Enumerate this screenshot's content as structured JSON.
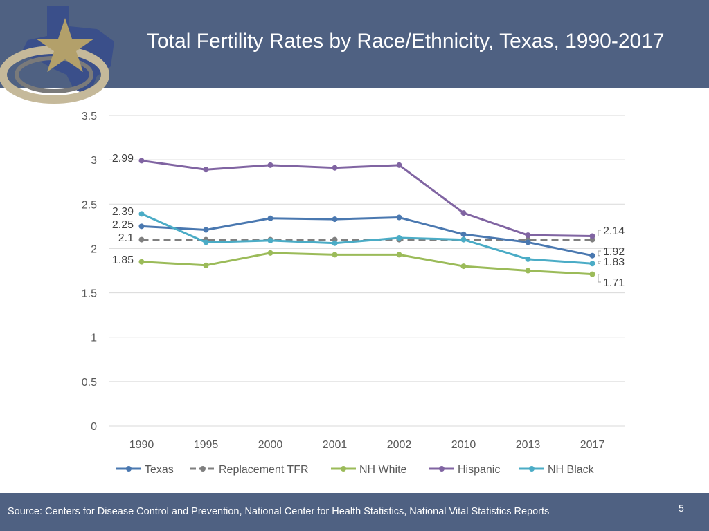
{
  "title": "Total Fertility Rates by Race/Ethnicity, Texas, 1990-2017",
  "logo": {
    "name": "Texas star logo"
  },
  "footer": {
    "source": "Source: Centers for Disease Control and Prevention, National Center for Health Statistics, National Vital Statistics Reports",
    "page_number": "5"
  },
  "colors": {
    "header_bg": "#4f6182",
    "Texas": "#4a78b0",
    "Replacement TFR": "#7f7f7f",
    "NH White": "#9bbb59",
    "Hispanic": "#8064a2",
    "NH Black": "#4bacc6"
  },
  "chart_data": {
    "type": "line",
    "title": "Total Fertility Rates by Race/Ethnicity, Texas, 1990-2017",
    "xlabel": "",
    "ylabel": "",
    "ylim": [
      0,
      3.5
    ],
    "yticks": [
      "0",
      "0.5",
      "1",
      "1.5",
      "2",
      "2.5",
      "3",
      "3.5"
    ],
    "grid": true,
    "legend_position": "bottom",
    "categories": [
      "1990",
      "1995",
      "2000",
      "2001",
      "2002",
      "2010",
      "2013",
      "2017"
    ],
    "series": [
      {
        "name": "Texas",
        "values": [
          2.25,
          2.21,
          2.34,
          2.33,
          2.35,
          2.16,
          2.07,
          1.92
        ]
      },
      {
        "name": "Replacement TFR",
        "dashed": true,
        "values": [
          2.1,
          2.1,
          2.1,
          2.1,
          2.1,
          2.1,
          2.1,
          2.1
        ]
      },
      {
        "name": "NH White",
        "values": [
          1.85,
          1.81,
          1.95,
          1.93,
          1.93,
          1.8,
          1.75,
          1.71
        ]
      },
      {
        "name": "Hispanic",
        "values": [
          2.99,
          2.89,
          2.94,
          2.91,
          2.94,
          2.4,
          2.15,
          2.14
        ]
      },
      {
        "name": "NH Black",
        "values": [
          2.39,
          2.07,
          2.09,
          2.06,
          2.12,
          2.1,
          1.88,
          1.83
        ]
      }
    ],
    "data_labels": [
      {
        "series": "Hispanic",
        "index": 0,
        "text": "2.99"
      },
      {
        "series": "NH Black",
        "index": 0,
        "text": "2.39"
      },
      {
        "series": "Texas",
        "index": 0,
        "text": "2.25"
      },
      {
        "series": "Replacement TFR",
        "index": 0,
        "text": "2.1"
      },
      {
        "series": "NH White",
        "index": 0,
        "text": "1.85"
      },
      {
        "series": "Hispanic",
        "index": 7,
        "text": "2.14"
      },
      {
        "series": "Texas",
        "index": 7,
        "text": "1.92"
      },
      {
        "series": "NH Black",
        "index": 7,
        "text": "1.83"
      },
      {
        "series": "NH White",
        "index": 7,
        "text": "1.71"
      }
    ]
  }
}
